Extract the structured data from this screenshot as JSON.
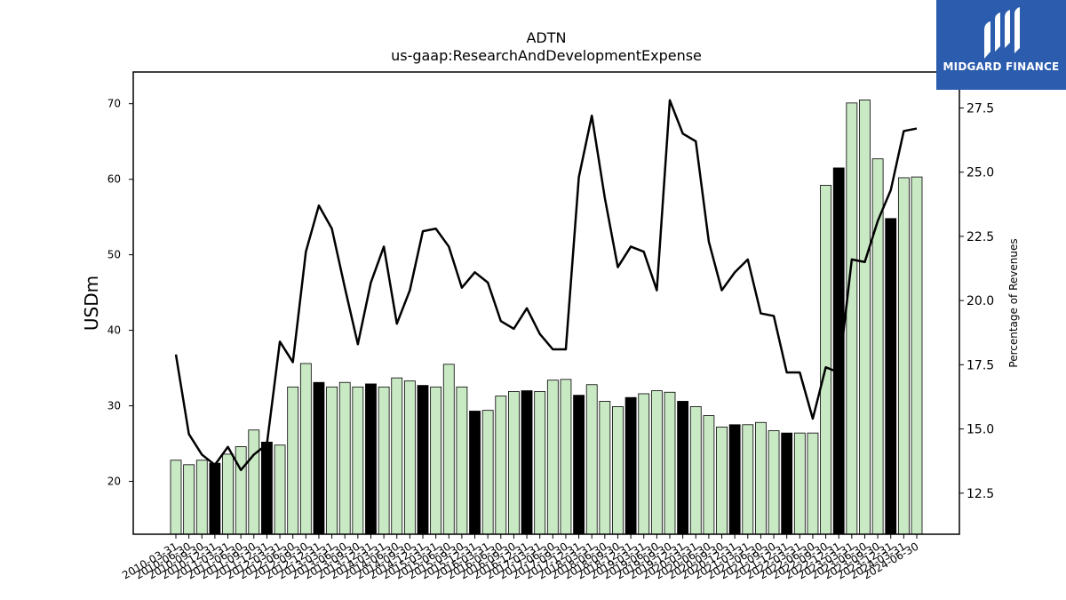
{
  "chart_data": {
    "type": "bar",
    "title": "ADTN",
    "subtitle": "us-gaap:ResearchAndDevelopmentExpense",
    "ylabel": "USDm",
    "y2label": "Percentage of Revenues",
    "ylim": [
      13.0,
      74.2
    ],
    "y2lim": [
      10.9,
      28.9
    ],
    "yticks": [
      20,
      30,
      40,
      50,
      60,
      70
    ],
    "y2ticks": [
      12.5,
      15.0,
      17.5,
      20.0,
      22.5,
      25.0,
      27.5
    ],
    "categories": [
      "2010-03-31",
      "2010-06-30",
      "2010-09-30",
      "2010-12-31",
      "2011-03-31",
      "2011-06-30",
      "2011-09-30",
      "2011-12-31",
      "2012-03-31",
      "2012-06-30",
      "2012-09-30",
      "2012-12-31",
      "2013-03-31",
      "2013-06-30",
      "2013-09-30",
      "2013-12-31",
      "2014-03-31",
      "2014-06-30",
      "2014-09-30",
      "2014-12-31",
      "2015-03-31",
      "2015-06-30",
      "2015-09-30",
      "2015-12-31",
      "2016-03-31",
      "2016-06-30",
      "2016-09-30",
      "2016-12-31",
      "2017-03-31",
      "2017-06-30",
      "2017-09-30",
      "2017-12-31",
      "2018-03-31",
      "2018-06-30",
      "2018-09-30",
      "2018-12-31",
      "2019-03-31",
      "2019-06-30",
      "2019-09-30",
      "2019-12-31",
      "2020-03-31",
      "2020-06-30",
      "2020-09-30",
      "2020-12-31",
      "2021-03-31",
      "2021-06-30",
      "2021-09-30",
      "2021-12-31",
      "2022-03-31",
      "2022-06-30",
      "2022-09-30",
      "2022-12-31",
      "2023-03-31",
      "2023-06-30",
      "2023-09-30",
      "2023-12-31",
      "2024-03-31",
      "2024-06-30"
    ],
    "series": [
      {
        "type": "bar",
        "values": [
          22.8,
          22.2,
          22.8,
          22.4,
          23.6,
          24.6,
          26.8,
          25.2,
          24.8,
          32.5,
          35.6,
          33.1,
          32.5,
          33.1,
          32.5,
          32.9,
          32.5,
          33.7,
          33.3,
          32.7,
          32.5,
          35.5,
          32.5,
          29.3,
          29.4,
          31.3,
          31.9,
          32.0,
          31.9,
          33.4,
          33.5,
          31.4,
          32.8,
          30.6,
          29.9,
          31.1,
          31.6,
          32.0,
          31.8,
          30.6,
          29.9,
          28.7,
          27.2,
          27.5,
          27.5,
          27.8,
          26.7,
          26.4,
          26.4,
          26.4,
          59.2,
          61.5,
          70.1,
          70.5,
          62.7,
          54.8,
          60.2,
          60.3
        ],
        "highlight_color": "#000000",
        "color": "#c9e8c4",
        "highlight_indices": [
          3,
          7,
          11,
          15,
          19,
          23,
          27,
          31,
          35,
          39,
          43,
          47,
          51,
          55
        ]
      },
      {
        "type": "line",
        "axis": "right",
        "color": "#000000",
        "values": [
          17.9,
          14.8,
          14.0,
          13.6,
          14.3,
          13.4,
          14.0,
          14.4,
          18.4,
          17.6,
          21.9,
          23.7,
          22.8,
          20.5,
          18.3,
          20.7,
          22.1,
          19.1,
          20.4,
          22.7,
          22.8,
          22.1,
          20.5,
          21.1,
          20.7,
          19.2,
          18.9,
          19.7,
          18.7,
          18.1,
          18.1,
          24.8,
          27.2,
          24.0,
          21.3,
          22.1,
          21.9,
          20.4,
          27.8,
          26.5,
          26.2,
          22.3,
          20.4,
          21.1,
          21.6,
          19.5,
          19.4,
          17.2,
          17.2,
          15.4,
          17.4,
          17.2,
          21.6,
          21.5,
          23.1,
          24.3,
          26.6,
          26.7
        ]
      }
    ]
  },
  "logo": {
    "text": "MIDGARD FINANCE"
  }
}
